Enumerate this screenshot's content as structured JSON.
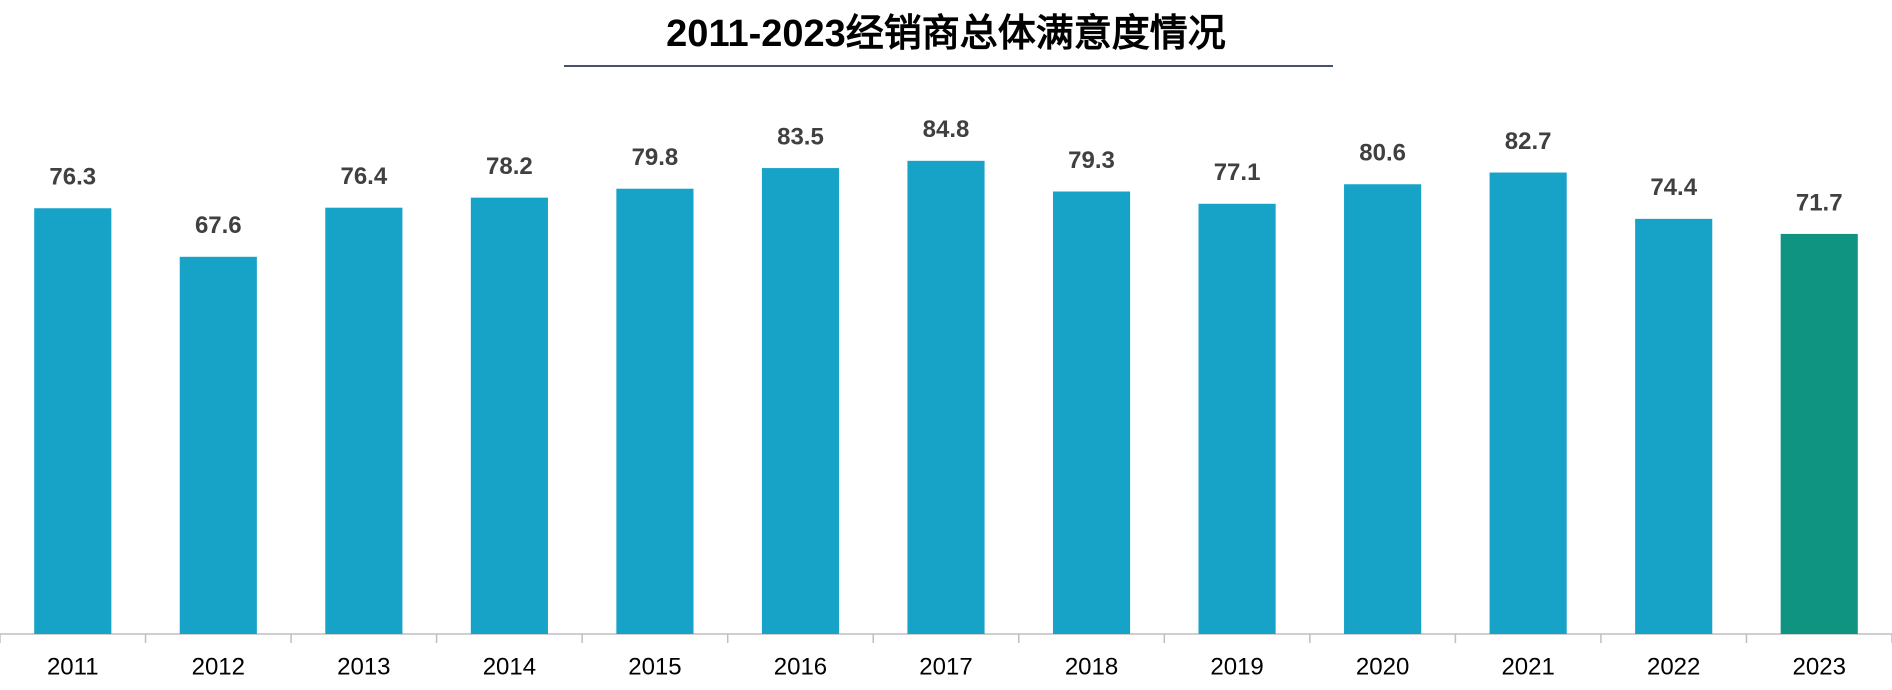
{
  "chart_data": {
    "type": "bar",
    "title": "2011-2023经销商总体满意度情况",
    "categories": [
      "2011",
      "2012",
      "2013",
      "2014",
      "2015",
      "2016",
      "2017",
      "2018",
      "2019",
      "2020",
      "2021",
      "2022",
      "2023"
    ],
    "values": [
      76.3,
      67.6,
      76.4,
      78.2,
      79.8,
      83.5,
      84.8,
      79.3,
      77.1,
      80.6,
      82.7,
      74.4,
      71.7
    ],
    "colors": [
      "#17a2c8",
      "#17a2c8",
      "#17a2c8",
      "#17a2c8",
      "#17a2c8",
      "#17a2c8",
      "#17a2c8",
      "#17a2c8",
      "#17a2c8",
      "#17a2c8",
      "#17a2c8",
      "#17a2c8",
      "#0e9480"
    ],
    "ylim": [
      0,
      100
    ]
  }
}
